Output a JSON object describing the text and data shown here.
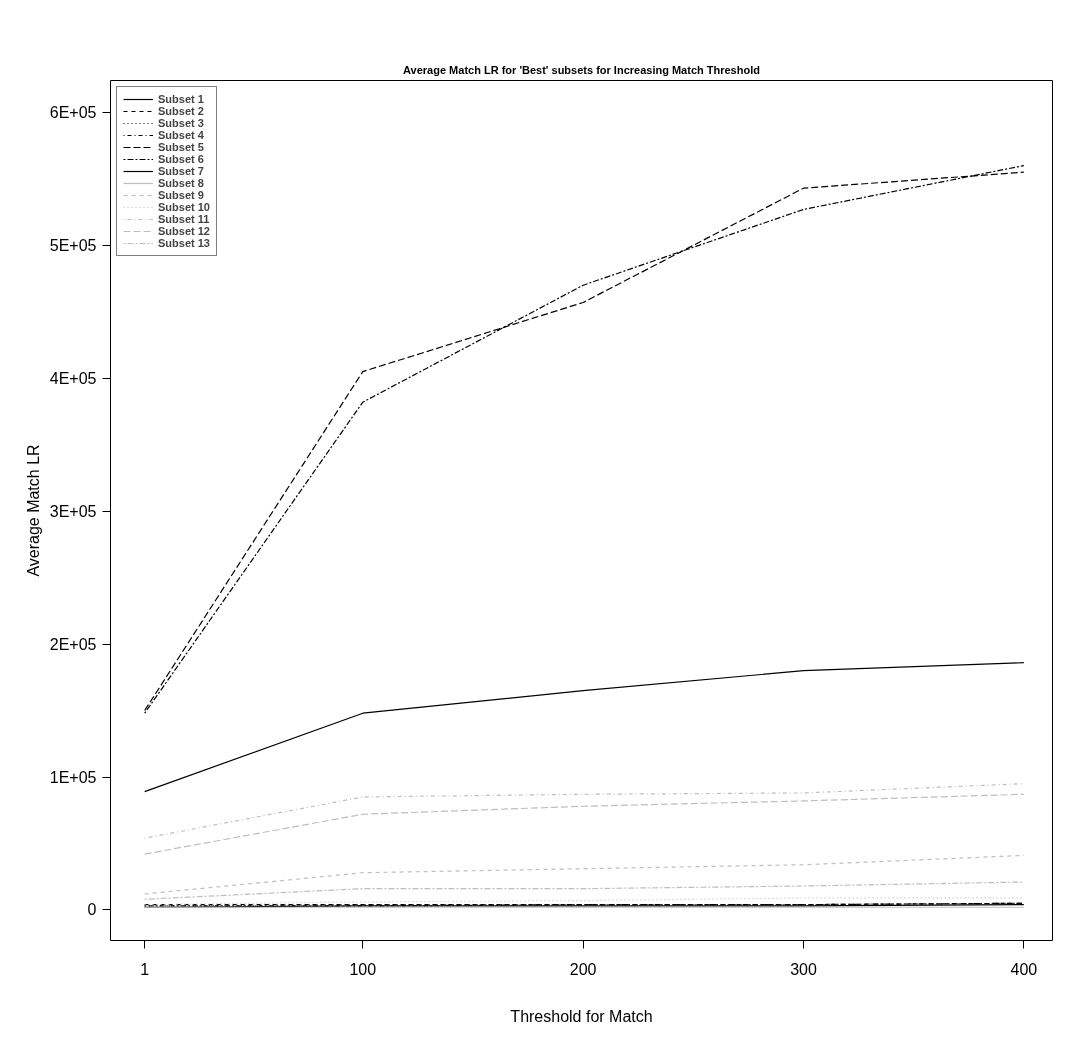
{
  "chart_data": {
    "type": "line",
    "title": "Average Match LR for 'Best' subsets for Increasing Match Threshold",
    "xlabel": "Threshold for Match",
    "ylabel": "Average Match LR",
    "x": [
      1,
      100,
      200,
      300,
      400
    ],
    "xlim": [
      -14.5,
      413
    ],
    "xticks": [
      1,
      100,
      200,
      300,
      400
    ],
    "ylim": [
      -23000,
      624000
    ],
    "yticks": [
      {
        "value": 0,
        "label": "0"
      },
      {
        "value": 100000,
        "label": "1E+05"
      },
      {
        "value": 200000,
        "label": "2E+05"
      },
      {
        "value": 300000,
        "label": "3E+05"
      },
      {
        "value": 400000,
        "label": "4E+05"
      },
      {
        "value": 500000,
        "label": "5E+05"
      },
      {
        "value": 600000,
        "label": "6E+05"
      }
    ],
    "grid": false,
    "legend": "top left",
    "marker": "none",
    "series": [
      {
        "name": "Subset 1",
        "color": "#000000",
        "line_style": "solid",
        "values": [
          89000,
          148000,
          165000,
          180000,
          186000
        ]
      },
      {
        "name": "Subset 2",
        "color": "#000000",
        "line_style": "dashed",
        "values": [
          4000,
          4000,
          4000,
          4000,
          5000
        ]
      },
      {
        "name": "Subset 3",
        "color": "#000000",
        "line_style": "dotted",
        "values": [
          3000,
          4000,
          4000,
          4000,
          5000
        ]
      },
      {
        "name": "Subset 4",
        "color": "#000000",
        "line_style": "dotdash",
        "values": [
          3000,
          3000,
          4000,
          4000,
          5000
        ]
      },
      {
        "name": "Subset 5",
        "color": "#000000",
        "line_style": "longdash",
        "values": [
          150000,
          405000,
          457000,
          543000,
          555000
        ]
      },
      {
        "name": "Subset 6",
        "color": "#000000",
        "line_style": "twodash",
        "values": [
          148000,
          382000,
          470000,
          527000,
          560000
        ]
      },
      {
        "name": "Subset 7",
        "color": "#000000",
        "line_style": "solid",
        "values": [
          2000,
          3000,
          3000,
          3000,
          4000
        ]
      },
      {
        "name": "Subset 8",
        "color": "#bebebe",
        "line_style": "solid",
        "values": [
          2000,
          2000,
          2000,
          2000,
          2000
        ]
      },
      {
        "name": "Subset 9",
        "color": "#bebebe",
        "line_style": "dashed",
        "values": [
          12000,
          28000,
          31000,
          34000,
          41000
        ]
      },
      {
        "name": "Subset 10",
        "color": "#bebebe",
        "line_style": "dotted",
        "values": [
          4000,
          6000,
          7000,
          9000,
          9000
        ]
      },
      {
        "name": "Subset 11",
        "color": "#bebebe",
        "line_style": "dotdash",
        "values": [
          54000,
          85000,
          87000,
          88000,
          95000
        ]
      },
      {
        "name": "Subset 12",
        "color": "#bebebe",
        "line_style": "longdash",
        "values": [
          42000,
          72000,
          78000,
          82000,
          87000
        ]
      },
      {
        "name": "Subset 13",
        "color": "#bebebe",
        "line_style": "twodash",
        "values": [
          8000,
          16000,
          16000,
          18000,
          21000
        ]
      }
    ]
  }
}
